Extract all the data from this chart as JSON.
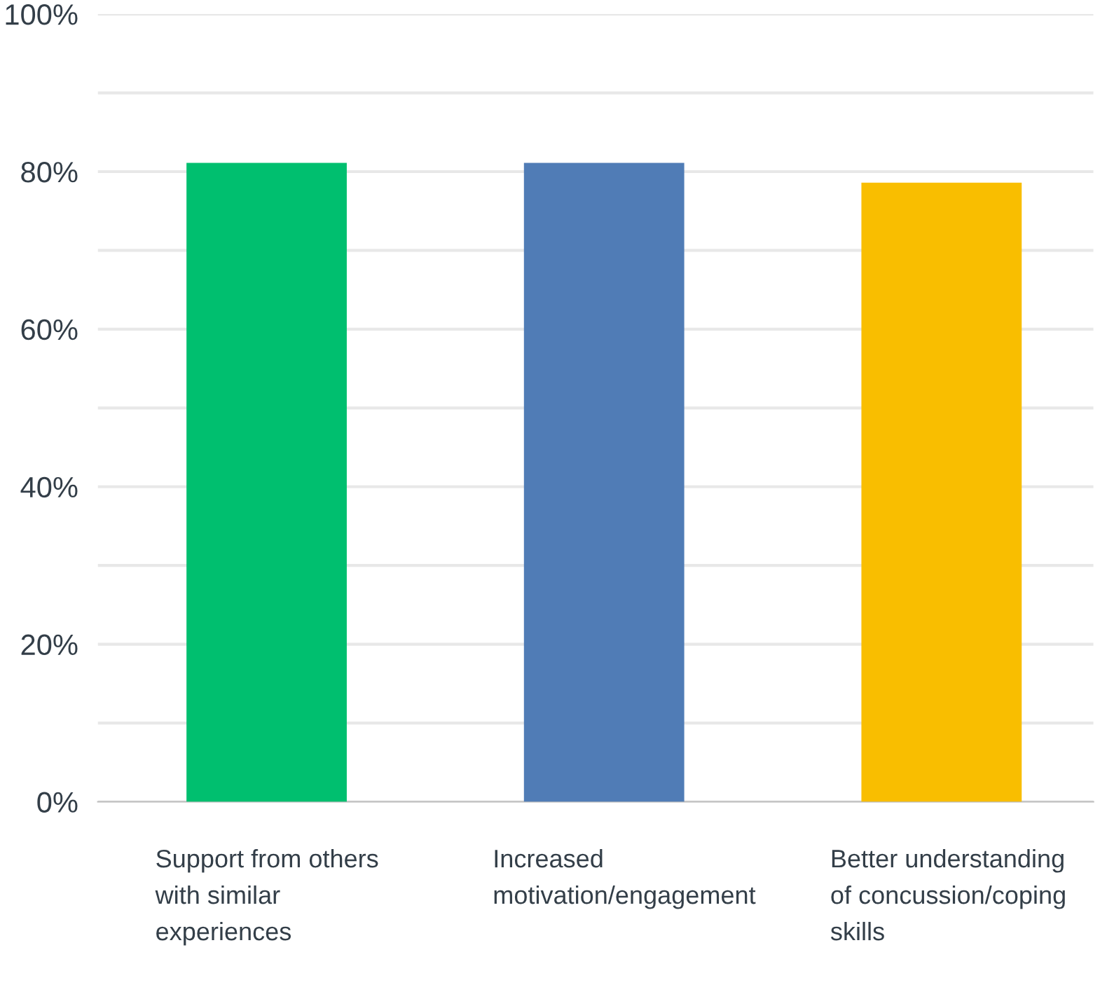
{
  "chart_data": {
    "type": "bar",
    "categories": [
      "Support from others\nwith similar\nexperiences",
      "Increased\nmotivation/engagement",
      "Better understanding\nof concussion/coping\nskills"
    ],
    "values": [
      81.1,
      81.1,
      78.6
    ],
    "colors": [
      "#00bf6f",
      "#507cb6",
      "#f9be00"
    ],
    "ylim": [
      0,
      100
    ],
    "yticks": [
      {
        "value": 0,
        "label": "0%"
      },
      {
        "value": 10,
        "label": null
      },
      {
        "value": 20,
        "label": "20%"
      },
      {
        "value": 30,
        "label": null
      },
      {
        "value": 40,
        "label": "40%"
      },
      {
        "value": 50,
        "label": null
      },
      {
        "value": 60,
        "label": "60%"
      },
      {
        "value": 70,
        "label": null
      },
      {
        "value": 80,
        "label": "80%"
      },
      {
        "value": 90,
        "label": null
      },
      {
        "value": 100,
        "label": "100%"
      }
    ],
    "grid": "y",
    "legend": false
  }
}
